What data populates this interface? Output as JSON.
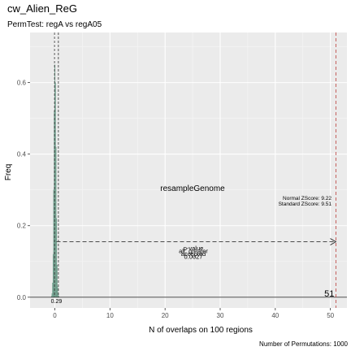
{
  "chart_data": {
    "type": "bar",
    "title": "cw_Alien_ReG",
    "subtitle": "PermTest:  regA vs regA05",
    "xlabel": "N of overlaps on 100 regions",
    "ylabel": "Freq",
    "xlim": [
      -4.5,
      53
    ],
    "ylim": [
      -0.03,
      0.74
    ],
    "x_ticks": [
      0,
      10,
      20,
      30,
      40,
      50
    ],
    "y_ticks": [
      0.0,
      0.2,
      0.4,
      0.6
    ],
    "x_tick_labels": [
      "0",
      "10",
      "20",
      "30",
      "40",
      "50"
    ],
    "y_tick_labels": [
      "0.0",
      "0.2",
      "0.4",
      "0.6"
    ],
    "grid": true,
    "bar_color": "#8fb8a8",
    "bar_edge_color": "#5a8a78",
    "histogram": {
      "x": [
        -0.6,
        -0.5,
        -0.4,
        -0.3,
        -0.2,
        -0.1,
        0.0,
        0.1,
        0.2,
        0.3,
        0.4,
        0.5,
        0.6,
        0.7
      ],
      "values": [
        0.003,
        0.01,
        0.04,
        0.12,
        0.3,
        0.52,
        0.65,
        0.6,
        0.42,
        0.22,
        0.09,
        0.03,
        0.01,
        0.003
      ]
    },
    "permuted_mean": 0.29,
    "permuted_mean_label": "0.29",
    "observed": 51,
    "observed_label": "51",
    "observed_color": "#c0504d",
    "alpha_line_x": 0.29,
    "arrow": {
      "from": 0.29,
      "to": 51,
      "y": 0.155
    },
    "method_label": "resampleGenome",
    "zscore_labels": [
      "Normal ZScore: 9.22",
      "Standard ZScore: 9.51"
    ],
    "overlap_stat_labels": [
      "p-value",
      "alt. greater",
      "accepted",
      "0.0027"
    ],
    "caption": "Number of Permutations: 1000"
  }
}
